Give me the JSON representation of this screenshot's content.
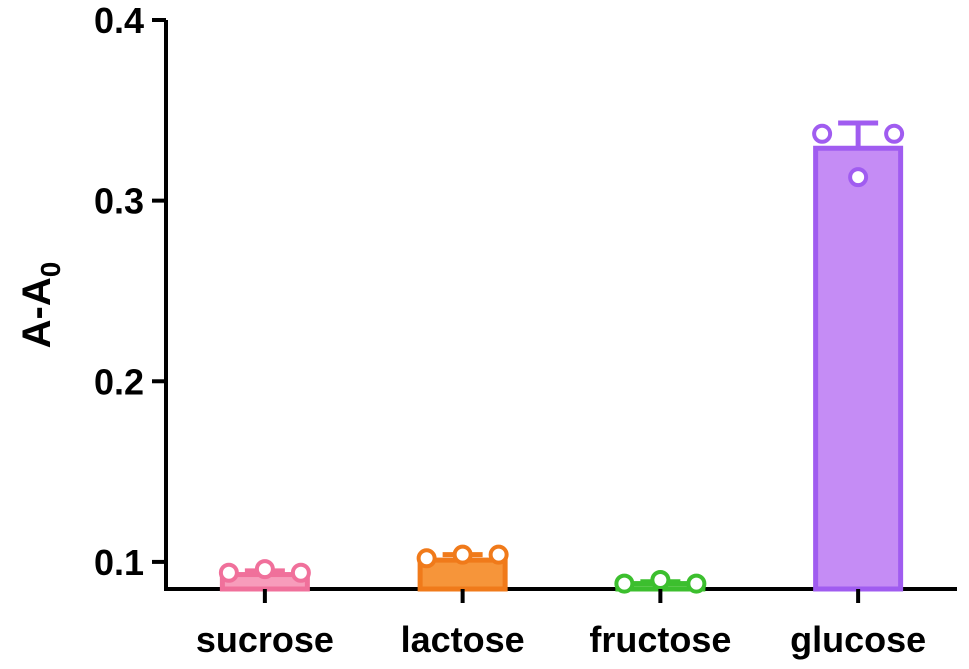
{
  "chart_data": {
    "type": "bar",
    "ylabel": "A-A",
    "ylabel_subscript": "0",
    "ylim": [
      0.085,
      0.4
    ],
    "yticks": [
      0.1,
      0.2,
      0.3,
      0.4
    ],
    "ytick_labels": [
      "0.1",
      "0.2",
      "0.3",
      "0.4"
    ],
    "categories": [
      "sucrose",
      "lactose",
      "fructose",
      "glucose"
    ],
    "values": [
      0.093,
      0.101,
      0.088,
      0.329
    ],
    "errors": [
      0.002,
      0.003,
      0.001,
      0.014
    ],
    "points": [
      [
        0.094,
        0.096,
        0.094
      ],
      [
        0.102,
        0.104,
        0.104
      ],
      [
        0.088,
        0.09,
        0.088
      ],
      [
        0.337,
        0.313,
        0.337
      ]
    ],
    "colors": {
      "fill": [
        "#f79cbb",
        "#f6953a",
        "#7fd66f",
        "#c58cf5"
      ],
      "stroke": [
        "#f0709b",
        "#f07a1a",
        "#3cbf2e",
        "#a05cf0"
      ]
    },
    "grid": false,
    "legend": "none"
  }
}
